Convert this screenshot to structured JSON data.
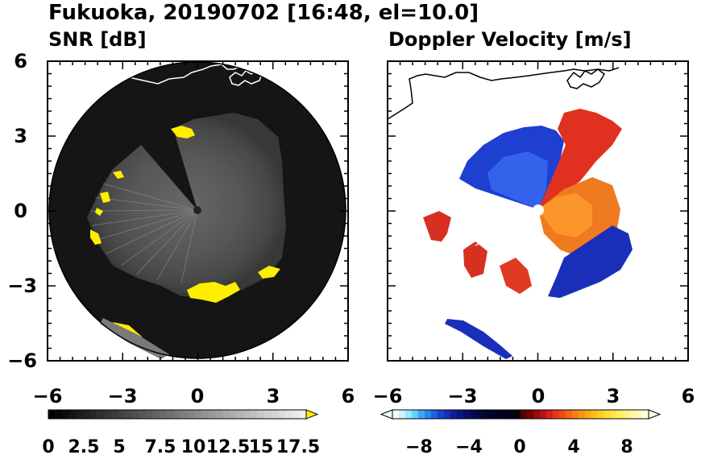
{
  "figure": {
    "title": "Fukuoka, 20190702 [16:48, el=10.0]"
  },
  "chart_data": [
    {
      "type": "heatmap",
      "title": "SNR [dB]",
      "projection": "polar-ppi",
      "xlim": [
        -6,
        6
      ],
      "ylim": [
        -6,
        6
      ],
      "xticks": [
        "−6",
        "−3",
        "0",
        "3",
        "6"
      ],
      "yticks": [
        "6",
        "3",
        "0",
        "−3",
        "−6"
      ],
      "range_radius": 5.9,
      "background_color": "#161616",
      "colorbar": {
        "min": 0,
        "max": 18.5,
        "step": 0.5,
        "extend": "max",
        "ticks": [
          "0",
          "2.5",
          "5",
          "7.5",
          "10",
          "12.5",
          "15",
          "17.5"
        ],
        "tick_values": [
          0,
          2.5,
          5,
          7.5,
          10,
          12.5,
          15,
          17.5
        ]
      },
      "high_snr_patches": [
        {
          "x": -0.55,
          "y": 3.1,
          "value": 19
        },
        {
          "x": -3.2,
          "y": 1.5,
          "value": 19
        },
        {
          "x": -3.6,
          "y": 0.6,
          "value": 19
        },
        {
          "x": -4.2,
          "y": -0.8,
          "value": 19
        },
        {
          "x": -0.3,
          "y": -3.3,
          "value": 19
        },
        {
          "x": 1.3,
          "y": -3.3,
          "value": 19
        },
        {
          "x": 3.0,
          "y": -2.4,
          "value": 19
        },
        {
          "x": -3.0,
          "y": -4.6,
          "value": 19
        }
      ]
    },
    {
      "type": "heatmap",
      "title": "Doppler Velocity [m/s]",
      "projection": "polar-ppi",
      "xlim": [
        -6,
        6
      ],
      "ylim": [
        -6,
        6
      ],
      "xticks": [
        "−6",
        "−3",
        "0",
        "3",
        "6"
      ],
      "yticks": [
        "6",
        "3",
        "0",
        "−3",
        "−6"
      ],
      "colorbar": {
        "min": -10,
        "max": 10,
        "extend": "both",
        "ticks": [
          "−8",
          "−4",
          "0",
          "4",
          "8"
        ],
        "tick_values": [
          -8,
          -4,
          0,
          4,
          8
        ]
      },
      "velocity_regions": [
        {
          "name": "approaching-north-west",
          "sign": "negative",
          "typical": -6
        },
        {
          "name": "receding-north-east",
          "sign": "positive",
          "typical": 7
        },
        {
          "name": "receding-east",
          "sign": "positive",
          "typical": 4
        },
        {
          "name": "approaching-south-east",
          "sign": "negative",
          "typical": -7
        },
        {
          "name": "receding-west",
          "sign": "positive",
          "typical": 6
        },
        {
          "name": "approaching-far-south-west",
          "sign": "negative",
          "typical": -7
        }
      ]
    }
  ]
}
